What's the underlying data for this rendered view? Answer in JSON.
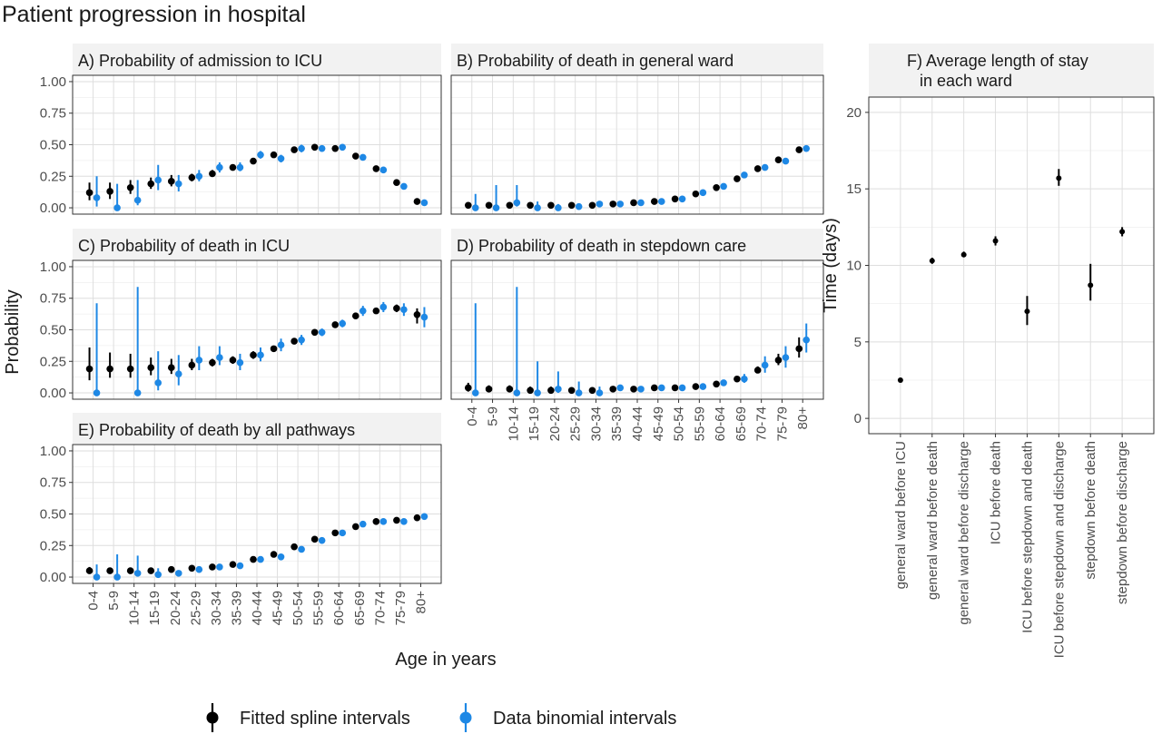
{
  "title": "Patient progression in hospital",
  "shared": {
    "ylabel": "Probability",
    "xlabel": "Age in years",
    "age_groups": [
      "0-4",
      "5-9",
      "10-14",
      "15-19",
      "20-24",
      "25-29",
      "30-34",
      "35-39",
      "40-44",
      "45-49",
      "50-54",
      "55-59",
      "60-64",
      "65-69",
      "70-74",
      "75-79",
      "80+"
    ],
    "yticks": [
      "0.00",
      "0.25",
      "0.50",
      "0.75",
      "1.00"
    ],
    "ylim": [
      0,
      1
    ]
  },
  "legend": {
    "position": "bottom",
    "items": [
      {
        "label": "Fitted spline intervals",
        "color": "#000000"
      },
      {
        "label": "Data binomial intervals",
        "color": "#1E88E5"
      }
    ]
  },
  "chart_data": [
    {
      "id": "A",
      "type": "scatter",
      "title": "A) Probability of admission to ICU",
      "series": [
        {
          "name": "Fitted spline intervals",
          "values": [
            0.12,
            0.13,
            0.16,
            0.19,
            0.21,
            0.24,
            0.27,
            0.32,
            0.37,
            0.42,
            0.46,
            0.48,
            0.47,
            0.41,
            0.31,
            0.2,
            0.05
          ],
          "lower": [
            0.06,
            0.07,
            0.11,
            0.15,
            0.17,
            0.21,
            0.25,
            0.3,
            0.35,
            0.4,
            0.44,
            0.46,
            0.45,
            0.39,
            0.29,
            0.18,
            0.04
          ],
          "upper": [
            0.2,
            0.2,
            0.22,
            0.24,
            0.26,
            0.27,
            0.3,
            0.34,
            0.39,
            0.44,
            0.48,
            0.5,
            0.49,
            0.43,
            0.33,
            0.21,
            0.06
          ]
        },
        {
          "name": "Data binomial intervals",
          "values": [
            0.08,
            0.0,
            0.06,
            0.22,
            0.19,
            0.25,
            0.32,
            0.32,
            0.42,
            0.39,
            0.47,
            0.47,
            0.48,
            0.4,
            0.3,
            0.17,
            0.04
          ],
          "lower": [
            0.01,
            0.0,
            0.02,
            0.14,
            0.13,
            0.21,
            0.28,
            0.29,
            0.39,
            0.36,
            0.44,
            0.45,
            0.46,
            0.38,
            0.28,
            0.16,
            0.03
          ],
          "upper": [
            0.25,
            0.19,
            0.22,
            0.34,
            0.26,
            0.3,
            0.36,
            0.36,
            0.45,
            0.42,
            0.5,
            0.49,
            0.5,
            0.42,
            0.32,
            0.19,
            0.05
          ]
        }
      ]
    },
    {
      "id": "B",
      "type": "scatter",
      "title": "B) Probability of death in general ward",
      "series": [
        {
          "name": "Fitted spline intervals",
          "values": [
            0.02,
            0.02,
            0.02,
            0.02,
            0.02,
            0.02,
            0.02,
            0.03,
            0.04,
            0.05,
            0.07,
            0.11,
            0.16,
            0.23,
            0.31,
            0.38,
            0.46
          ],
          "lower": [
            0.01,
            0.01,
            0.01,
            0.01,
            0.01,
            0.01,
            0.02,
            0.02,
            0.03,
            0.04,
            0.06,
            0.1,
            0.15,
            0.22,
            0.3,
            0.37,
            0.45
          ],
          "upper": [
            0.04,
            0.04,
            0.04,
            0.03,
            0.03,
            0.03,
            0.03,
            0.04,
            0.05,
            0.06,
            0.08,
            0.12,
            0.17,
            0.24,
            0.32,
            0.39,
            0.47
          ]
        },
        {
          "name": "Data binomial intervals",
          "values": [
            0.0,
            0.0,
            0.04,
            0.0,
            0.0,
            0.01,
            0.03,
            0.03,
            0.04,
            0.05,
            0.07,
            0.12,
            0.17,
            0.26,
            0.32,
            0.37,
            0.47
          ],
          "lower": [
            0.0,
            0.0,
            0.01,
            0.0,
            0.0,
            0.0,
            0.02,
            0.02,
            0.03,
            0.04,
            0.06,
            0.11,
            0.16,
            0.25,
            0.31,
            0.36,
            0.46
          ],
          "upper": [
            0.11,
            0.18,
            0.18,
            0.05,
            0.03,
            0.03,
            0.04,
            0.04,
            0.05,
            0.06,
            0.08,
            0.13,
            0.18,
            0.27,
            0.33,
            0.38,
            0.48
          ]
        }
      ]
    },
    {
      "id": "C",
      "type": "scatter",
      "title": "C) Probability of death in ICU",
      "series": [
        {
          "name": "Fitted spline intervals",
          "values": [
            0.19,
            0.19,
            0.19,
            0.2,
            0.2,
            0.22,
            0.24,
            0.26,
            0.3,
            0.35,
            0.41,
            0.48,
            0.54,
            0.61,
            0.65,
            0.67,
            0.62
          ],
          "lower": [
            0.1,
            0.12,
            0.12,
            0.14,
            0.15,
            0.18,
            0.21,
            0.23,
            0.27,
            0.33,
            0.39,
            0.46,
            0.52,
            0.59,
            0.63,
            0.64,
            0.55
          ],
          "upper": [
            0.36,
            0.32,
            0.31,
            0.28,
            0.27,
            0.27,
            0.27,
            0.29,
            0.33,
            0.37,
            0.43,
            0.5,
            0.56,
            0.63,
            0.67,
            0.7,
            0.67
          ]
        },
        {
          "name": "Data binomial intervals",
          "values": [
            0.0,
            null,
            0.0,
            0.08,
            0.15,
            0.26,
            0.28,
            0.24,
            0.3,
            0.38,
            0.42,
            0.48,
            0.55,
            0.65,
            0.68,
            0.66,
            0.6
          ],
          "lower": [
            0.0,
            null,
            0.0,
            0.02,
            0.06,
            0.18,
            0.22,
            0.18,
            0.25,
            0.33,
            0.38,
            0.45,
            0.52,
            0.61,
            0.64,
            0.61,
            0.52
          ],
          "upper": [
            0.71,
            null,
            0.84,
            0.33,
            0.3,
            0.37,
            0.37,
            0.31,
            0.36,
            0.43,
            0.46,
            0.51,
            0.58,
            0.69,
            0.72,
            0.71,
            0.68
          ]
        }
      ]
    },
    {
      "id": "D",
      "type": "scatter",
      "title": "D) Probability of death in stepdown care",
      "series": [
        {
          "name": "Fitted spline intervals",
          "values": [
            0.04,
            0.03,
            0.03,
            0.02,
            0.02,
            0.02,
            0.02,
            0.03,
            0.03,
            0.04,
            0.04,
            0.05,
            0.07,
            0.11,
            0.18,
            0.26,
            0.35
          ],
          "lower": [
            0.01,
            0.01,
            0.01,
            0.01,
            0.01,
            0.01,
            0.01,
            0.02,
            0.02,
            0.03,
            0.03,
            0.04,
            0.06,
            0.1,
            0.16,
            0.22,
            0.28
          ],
          "upper": [
            0.08,
            0.06,
            0.06,
            0.05,
            0.05,
            0.04,
            0.04,
            0.04,
            0.04,
            0.05,
            0.05,
            0.06,
            0.08,
            0.13,
            0.21,
            0.31,
            0.44
          ]
        },
        {
          "name": "Data binomial intervals",
          "values": [
            0.0,
            null,
            0.0,
            0.0,
            0.03,
            0.0,
            0.0,
            0.04,
            0.03,
            0.04,
            0.04,
            0.05,
            0.08,
            0.11,
            0.22,
            0.28,
            0.42
          ],
          "lower": [
            0.0,
            null,
            0.0,
            0.0,
            0.0,
            0.0,
            0.0,
            0.02,
            0.02,
            0.03,
            0.03,
            0.04,
            0.06,
            0.08,
            0.16,
            0.2,
            0.32
          ],
          "upper": [
            0.71,
            null,
            0.84,
            0.25,
            0.17,
            0.09,
            0.05,
            0.06,
            0.05,
            0.05,
            0.05,
            0.06,
            0.1,
            0.15,
            0.29,
            0.37,
            0.55
          ]
        }
      ]
    },
    {
      "id": "E",
      "type": "scatter",
      "title": "E) Probability of death by all pathways",
      "series": [
        {
          "name": "Fitted spline intervals",
          "values": [
            0.05,
            0.05,
            0.05,
            0.05,
            0.06,
            0.07,
            0.08,
            0.1,
            0.14,
            0.18,
            0.24,
            0.3,
            0.35,
            0.4,
            0.44,
            0.45,
            0.47
          ],
          "lower": [
            0.03,
            0.03,
            0.03,
            0.04,
            0.05,
            0.06,
            0.07,
            0.09,
            0.13,
            0.17,
            0.23,
            0.29,
            0.34,
            0.39,
            0.43,
            0.44,
            0.46
          ],
          "upper": [
            0.08,
            0.07,
            0.07,
            0.06,
            0.07,
            0.08,
            0.09,
            0.11,
            0.15,
            0.19,
            0.25,
            0.31,
            0.36,
            0.41,
            0.45,
            0.46,
            0.48
          ]
        },
        {
          "name": "Data binomial intervals",
          "values": [
            0.0,
            0.0,
            0.03,
            0.02,
            0.03,
            0.06,
            0.08,
            0.09,
            0.14,
            0.16,
            0.22,
            0.29,
            0.35,
            0.42,
            0.44,
            0.44,
            0.48
          ],
          "lower": [
            0.0,
            0.0,
            0.01,
            0.0,
            0.02,
            0.04,
            0.07,
            0.08,
            0.13,
            0.15,
            0.21,
            0.28,
            0.34,
            0.41,
            0.43,
            0.43,
            0.47
          ],
          "upper": [
            0.1,
            0.18,
            0.17,
            0.07,
            0.05,
            0.08,
            0.09,
            0.1,
            0.15,
            0.17,
            0.23,
            0.3,
            0.36,
            0.43,
            0.45,
            0.45,
            0.49
          ]
        }
      ]
    },
    {
      "id": "F",
      "type": "scatter",
      "title": "F) Average length of stay\n   in each ward",
      "ylabel": "Time (days)",
      "ylim": [
        -1,
        21
      ],
      "yticks": [
        "0",
        "5",
        "10",
        "15",
        "20"
      ],
      "categories": [
        "general ward before ICU",
        "general ward before death",
        "general ward before discharge",
        "ICU before death",
        "ICU before stepdown and death",
        "ICU before stepdown and discharge",
        "stepdown before death",
        "stepdown before discharge"
      ],
      "values": [
        2.5,
        10.3,
        10.7,
        11.6,
        7.0,
        15.7,
        8.7,
        12.2
      ],
      "lower": [
        2.4,
        10.1,
        10.6,
        11.3,
        6.1,
        15.2,
        7.7,
        11.9
      ],
      "upper": [
        2.6,
        10.5,
        10.9,
        11.9,
        8.0,
        16.3,
        10.1,
        12.5
      ]
    }
  ]
}
